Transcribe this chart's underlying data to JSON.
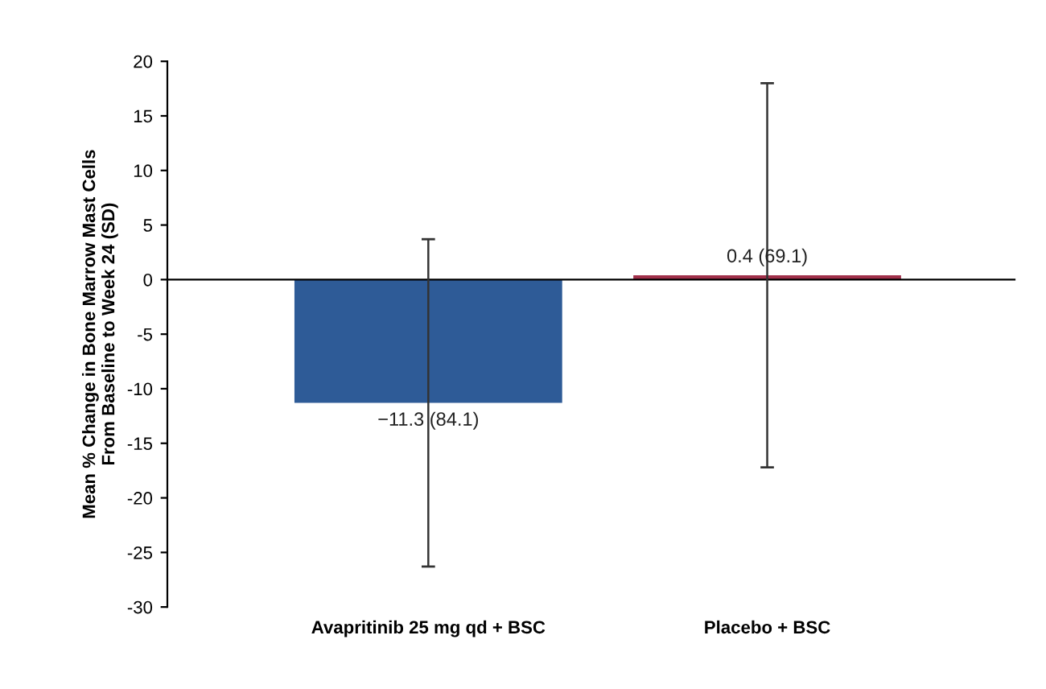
{
  "chart_data": {
    "type": "bar",
    "ylabel": "Mean % Change in Bone Marrow Mast Cells\nFrom Baseline to Week 24 (SD)",
    "categories": [
      "Avapritinib 25 mg qd + BSC",
      "Placebo + BSC"
    ],
    "values": [
      -11.3,
      0.4
    ],
    "colors": [
      "#2e5b97",
      "#a0304a"
    ],
    "errors": [
      15,
      17.6
    ],
    "value_labels": [
      "−11.3 (84.1)",
      "0.4 (69.1)"
    ],
    "ylim": [
      -30,
      20
    ],
    "yticks": [
      -30,
      -25,
      -20,
      -15,
      -10,
      -5,
      0,
      5,
      10,
      15,
      20
    ],
    "grid": false,
    "legend": false
  }
}
